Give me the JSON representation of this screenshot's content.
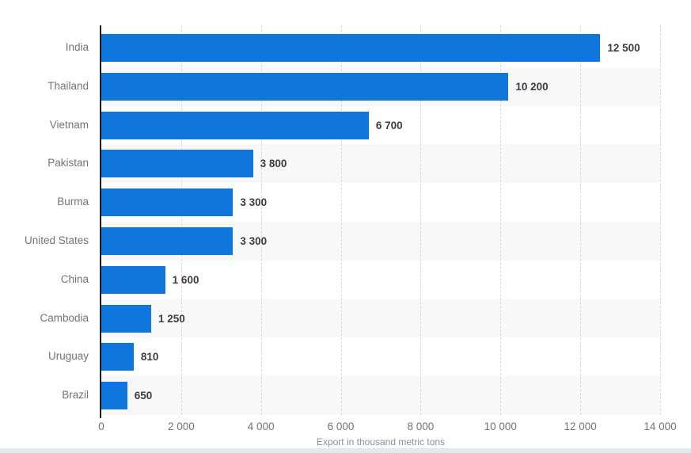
{
  "chart_data": {
    "type": "bar",
    "orientation": "horizontal",
    "title": "",
    "categories": [
      "India",
      "Thailand",
      "Vietnam",
      "Pakistan",
      "Burma",
      "United States",
      "China",
      "Cambodia",
      "Uruguay",
      "Brazil"
    ],
    "values": [
      12500,
      10200,
      6700,
      3800,
      3300,
      3300,
      1600,
      1250,
      810,
      650
    ],
    "value_labels": [
      "12 500",
      "10 200",
      "6 700",
      "3 800",
      "3 300",
      "3 300",
      "1 600",
      "1 250",
      "810",
      "650"
    ],
    "xlabel": "Export in thousand metric tons",
    "ylabel": "",
    "xlim": [
      0,
      14000
    ],
    "x_ticks": [
      0,
      2000,
      4000,
      6000,
      8000,
      10000,
      12000,
      14000
    ],
    "x_tick_labels": [
      "0",
      "2 000",
      "4 000",
      "6 000",
      "8 000",
      "10 000",
      "12 000",
      "14 000"
    ],
    "grid": "vertical-dashed",
    "legend": "none",
    "striped_rows": "alternating starting at second row",
    "colors": {
      "bar": "#0e76dd",
      "row_band": "#f8f8f8",
      "gridline": "#d9d9d9",
      "axis_line": "#1a1a1a",
      "category_label": "#737373",
      "value_label": "#3d3d3d",
      "tick_label": "#737373",
      "axis_title": "#8f8f8f",
      "footer_strip": "#e6e9eb"
    }
  }
}
